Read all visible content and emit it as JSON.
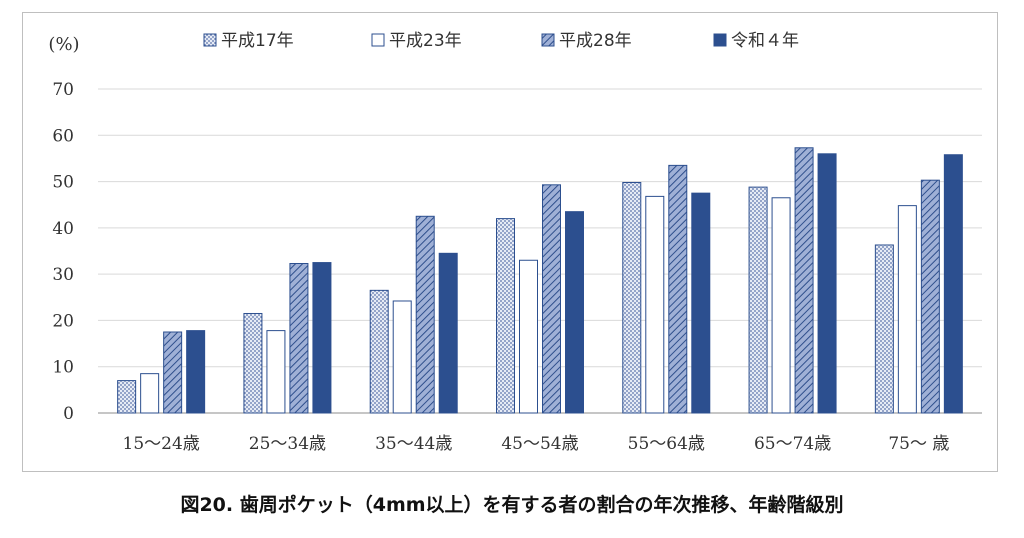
{
  "chart_data": {
    "type": "bar",
    "ylabel": "(%)",
    "ylim": [
      0,
      70
    ],
    "yticks": [
      0,
      10,
      20,
      30,
      40,
      50,
      60,
      70
    ],
    "categories": [
      "15〜24歳",
      "25〜34歳",
      "35〜44歳",
      "45〜54歳",
      "55〜64歳",
      "65〜74歳",
      "75〜 歳"
    ],
    "series": [
      {
        "name": "平成17年",
        "values": [
          7.0,
          21.5,
          26.5,
          42.0,
          49.8,
          48.8,
          36.3
        ],
        "color": "#c9d3e8",
        "pattern": "dots"
      },
      {
        "name": "平成23年",
        "values": [
          8.5,
          17.8,
          24.2,
          33.0,
          46.8,
          46.5,
          44.8
        ],
        "color": "#ffffff",
        "pattern": "none"
      },
      {
        "name": "平成28年",
        "values": [
          17.5,
          32.3,
          42.5,
          49.3,
          53.5,
          57.3,
          50.3
        ],
        "color": "#7f93c4",
        "pattern": "hatch"
      },
      {
        "name": "令和４年",
        "values": [
          17.8,
          32.5,
          34.5,
          43.5,
          47.5,
          56.0,
          55.8
        ],
        "color": "#2c4f8f",
        "pattern": "solid"
      }
    ],
    "legend_position": "top",
    "grid": true
  },
  "caption": "図20.  歯周ポケット（4mm以上）を有する者の割合の年次推移、年齢階級別"
}
